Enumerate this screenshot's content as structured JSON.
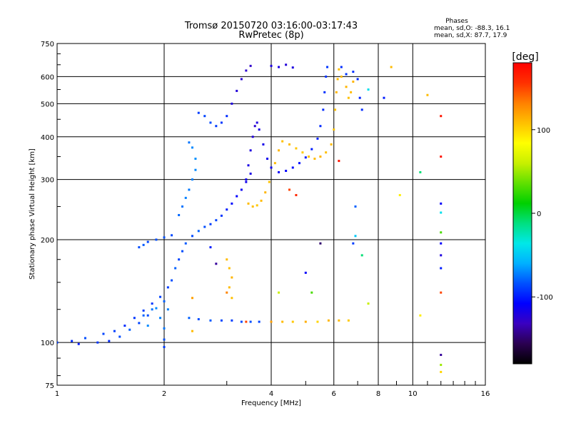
{
  "header": {
    "title_line1": "Tromsø 20150720 03:16:00-03:17:43",
    "title_line2": "RwPretec (8p)"
  },
  "phases_box": {
    "title": "Phases",
    "line_o": "mean, sd,O: -88.3, 16.1",
    "line_x": "mean, sd,X:  87.7, 17.9"
  },
  "colorbar": {
    "label": "[deg]",
    "range": [
      -180,
      180
    ],
    "ticks": [
      {
        "value": 100,
        "label": "100"
      },
      {
        "value": 0,
        "label": "0"
      },
      {
        "value": -100,
        "label": "-100"
      }
    ],
    "stops": [
      "#000000",
      "#2a0050",
      "#3a00c0",
      "#0000ff",
      "#0050ff",
      "#00b0ff",
      "#00e8e8",
      "#00e080",
      "#00d000",
      "#60e000",
      "#c8f000",
      "#ffff00",
      "#ffc000",
      "#ff8000",
      "#ff3000",
      "#ff0000"
    ]
  },
  "chart_data": {
    "type": "scatter",
    "xlabel": "Frequency [MHz]",
    "ylabel": "Stationary phase Virtual Height [km]",
    "xscale": "log",
    "yscale": "log",
    "xlim": [
      1,
      16
    ],
    "ylim": [
      75,
      750
    ],
    "grid": true,
    "x_ticks": [
      {
        "value": 1,
        "label": "1"
      },
      {
        "value": 2,
        "label": "2"
      },
      {
        "value": 4,
        "label": "4"
      },
      {
        "value": 6,
        "label": "6"
      },
      {
        "value": 8,
        "label": "8"
      },
      {
        "value": 10,
        "label": "10"
      },
      {
        "value": 16,
        "label": "16"
      }
    ],
    "y_ticks": [
      {
        "value": 75,
        "label": "75"
      },
      {
        "value": 100,
        "label": "100"
      },
      {
        "value": 200,
        "label": "200"
      },
      {
        "value": 300,
        "label": "300"
      },
      {
        "value": 400,
        "label": "400"
      },
      {
        "value": 500,
        "label": "500"
      },
      {
        "value": 600,
        "label": "600"
      },
      {
        "value": 750,
        "label": "750"
      }
    ],
    "points": [
      [
        1.0,
        100,
        -90
      ],
      [
        1.1,
        101,
        -95
      ],
      [
        1.15,
        99,
        -100
      ],
      [
        1.2,
        103,
        -85
      ],
      [
        1.3,
        100,
        -92
      ],
      [
        1.35,
        106,
        -88
      ],
      [
        1.4,
        101,
        -96
      ],
      [
        1.45,
        108,
        -90
      ],
      [
        1.5,
        104,
        -85
      ],
      [
        1.55,
        112,
        -95
      ],
      [
        1.6,
        109,
        -80
      ],
      [
        1.65,
        118,
        -92
      ],
      [
        1.7,
        114,
        -88
      ],
      [
        1.75,
        124,
        -90
      ],
      [
        1.8,
        120,
        -85
      ],
      [
        1.85,
        130,
        -92
      ],
      [
        1.9,
        126,
        -70
      ],
      [
        1.95,
        136,
        -88
      ],
      [
        2.0,
        132,
        -80
      ],
      [
        2.05,
        145,
        -90
      ],
      [
        2.1,
        152,
        -85
      ],
      [
        2.15,
        165,
        -80
      ],
      [
        2.2,
        175,
        -88
      ],
      [
        2.25,
        185,
        -85
      ],
      [
        2.3,
        195,
        -82
      ],
      [
        2.4,
        205,
        -86
      ],
      [
        2.5,
        212,
        -80
      ],
      [
        2.6,
        218,
        -85
      ],
      [
        2.7,
        222,
        -90
      ],
      [
        2.8,
        228,
        -88
      ],
      [
        2.9,
        235,
        -92
      ],
      [
        3.0,
        245,
        -100
      ],
      [
        3.1,
        255,
        -105
      ],
      [
        3.2,
        268,
        -108
      ],
      [
        3.3,
        280,
        -112
      ],
      [
        3.4,
        295,
        -115
      ],
      [
        3.5,
        312,
        -118
      ],
      [
        1.75,
        120,
        -80
      ],
      [
        1.8,
        112,
        -70
      ],
      [
        1.85,
        125,
        -75
      ],
      [
        1.95,
        118,
        -72
      ],
      [
        2.0,
        110,
        -75
      ],
      [
        2.05,
        125,
        -72
      ],
      [
        2.0,
        102,
        -85
      ],
      [
        2.0,
        97,
        -90
      ],
      [
        1.7,
        190,
        -85
      ],
      [
        1.75,
        193,
        -82
      ],
      [
        1.8,
        197,
        -88
      ],
      [
        1.9,
        200,
        -85
      ],
      [
        2.0,
        203,
        -84
      ],
      [
        2.1,
        206,
        -86
      ],
      [
        2.2,
        236,
        -78
      ],
      [
        2.25,
        250,
        -75
      ],
      [
        2.3,
        265,
        -72
      ],
      [
        2.35,
        280,
        -74
      ],
      [
        2.4,
        300,
        -72
      ],
      [
        2.45,
        320,
        -70
      ],
      [
        2.45,
        345,
        -68
      ],
      [
        2.4,
        372,
        -70
      ],
      [
        2.35,
        385,
        -75
      ],
      [
        2.35,
        118,
        -80
      ],
      [
        2.5,
        117,
        -85
      ],
      [
        2.7,
        116,
        -82
      ],
      [
        2.9,
        116,
        -88
      ],
      [
        3.1,
        116,
        -90
      ],
      [
        3.3,
        115,
        -86
      ],
      [
        3.5,
        115,
        -85
      ],
      [
        3.7,
        115,
        -88
      ],
      [
        4.0,
        115,
        120
      ],
      [
        4.3,
        115,
        110
      ],
      [
        4.6,
        115,
        105
      ],
      [
        5.0,
        115,
        115
      ],
      [
        5.4,
        115,
        100
      ],
      [
        5.8,
        116,
        112
      ],
      [
        6.2,
        116,
        110
      ],
      [
        6.6,
        116,
        105
      ],
      [
        3.4,
        300,
        -115
      ],
      [
        3.45,
        330,
        -118
      ],
      [
        3.5,
        365,
        -120
      ],
      [
        3.55,
        400,
        -122
      ],
      [
        3.6,
        430,
        -125
      ],
      [
        3.65,
        440,
        -120
      ],
      [
        3.7,
        420,
        -118
      ],
      [
        3.8,
        380,
        -116
      ],
      [
        3.9,
        345,
        -114
      ],
      [
        4.0,
        325,
        -112
      ],
      [
        4.2,
        315,
        -110
      ],
      [
        4.4,
        318,
        -108
      ],
      [
        4.6,
        325,
        -106
      ],
      [
        4.8,
        335,
        -104
      ],
      [
        5.0,
        348,
        -102
      ],
      [
        5.2,
        368,
        -100
      ],
      [
        5.4,
        395,
        -98
      ],
      [
        5.5,
        430,
        -96
      ],
      [
        5.6,
        480,
        -95
      ],
      [
        5.65,
        540,
        -94
      ],
      [
        5.7,
        600,
        -93
      ],
      [
        5.75,
        640,
        -92
      ],
      [
        3.45,
        255,
        110
      ],
      [
        3.55,
        250,
        108
      ],
      [
        3.65,
        252,
        105
      ],
      [
        3.75,
        260,
        110
      ],
      [
        3.85,
        275,
        112
      ],
      [
        3.95,
        295,
        108
      ],
      [
        4.1,
        335,
        110
      ],
      [
        4.2,
        365,
        112
      ],
      [
        4.3,
        388,
        108
      ],
      [
        4.5,
        380,
        110
      ],
      [
        4.7,
        370,
        106
      ],
      [
        4.9,
        360,
        104
      ],
      [
        5.1,
        350,
        108
      ],
      [
        5.3,
        345,
        110
      ],
      [
        5.5,
        350,
        112
      ],
      [
        5.7,
        360,
        108
      ],
      [
        5.9,
        380,
        110
      ],
      [
        6.0,
        420,
        106
      ],
      [
        6.05,
        480,
        108
      ],
      [
        6.1,
        540,
        112
      ],
      [
        6.15,
        590,
        110
      ],
      [
        6.2,
        630,
        108
      ],
      [
        6.3,
        600,
        110
      ],
      [
        6.5,
        560,
        112
      ],
      [
        6.6,
        520,
        108
      ],
      [
        6.7,
        540,
        110
      ],
      [
        6.8,
        580,
        112
      ],
      [
        6.3,
        640,
        -95
      ],
      [
        6.5,
        610,
        -92
      ],
      [
        6.8,
        620,
        -94
      ],
      [
        7.0,
        590,
        -96
      ],
      [
        7.1,
        520,
        -98
      ],
      [
        7.2,
        480,
        -95
      ],
      [
        3.1,
        500,
        -120
      ],
      [
        3.2,
        545,
        -122
      ],
      [
        3.3,
        590,
        -124
      ],
      [
        3.4,
        625,
        -126
      ],
      [
        3.5,
        645,
        -128
      ],
      [
        4.0,
        645,
        -120
      ],
      [
        4.2,
        640,
        -118
      ],
      [
        4.4,
        650,
        -122
      ],
      [
        4.6,
        638,
        -120
      ],
      [
        2.5,
        470,
        -90
      ],
      [
        2.6,
        460,
        -88
      ],
      [
        2.7,
        440,
        -86
      ],
      [
        2.8,
        430,
        -90
      ],
      [
        2.9,
        440,
        -92
      ],
      [
        3.0,
        460,
        -95
      ],
      [
        3.0,
        175,
        110
      ],
      [
        3.05,
        165,
        108
      ],
      [
        3.1,
        155,
        112
      ],
      [
        3.05,
        145,
        110
      ],
      [
        3.1,
        135,
        108
      ],
      [
        2.4,
        135,
        120
      ],
      [
        2.4,
        108,
        110
      ],
      [
        3.0,
        140,
        130
      ],
      [
        8.3,
        520,
        -100
      ],
      [
        8.7,
        640,
        110
      ],
      [
        7.5,
        550,
        -40
      ],
      [
        9.2,
        270,
        90
      ],
      [
        10.5,
        315,
        -10
      ],
      [
        11,
        530,
        110
      ],
      [
        10.5,
        120,
        90
      ],
      [
        12,
        460,
        170
      ],
      [
        12,
        350,
        170
      ],
      [
        12,
        255,
        -110
      ],
      [
        12,
        240,
        -40
      ],
      [
        12,
        210,
        30
      ],
      [
        12,
        195,
        -110
      ],
      [
        12,
        180,
        -120
      ],
      [
        12,
        165,
        -100
      ],
      [
        12,
        140,
        150
      ],
      [
        12,
        92,
        -140
      ],
      [
        12,
        86,
        50
      ],
      [
        12,
        82,
        100
      ],
      [
        5.5,
        195,
        -150
      ],
      [
        6.2,
        340,
        170
      ],
      [
        6.9,
        250,
        -80
      ],
      [
        6.9,
        205,
        -50
      ],
      [
        6.8,
        195,
        -90
      ],
      [
        4.5,
        280,
        150
      ],
      [
        4.7,
        270,
        160
      ],
      [
        5.0,
        160,
        -110
      ],
      [
        5.2,
        140,
        30
      ],
      [
        7.2,
        180,
        -10
      ],
      [
        7.5,
        130,
        60
      ],
      [
        2.8,
        170,
        -140
      ],
      [
        3.4,
        115,
        150
      ],
      [
        4.2,
        140,
        60
      ],
      [
        2.7,
        190,
        -100
      ]
    ]
  }
}
